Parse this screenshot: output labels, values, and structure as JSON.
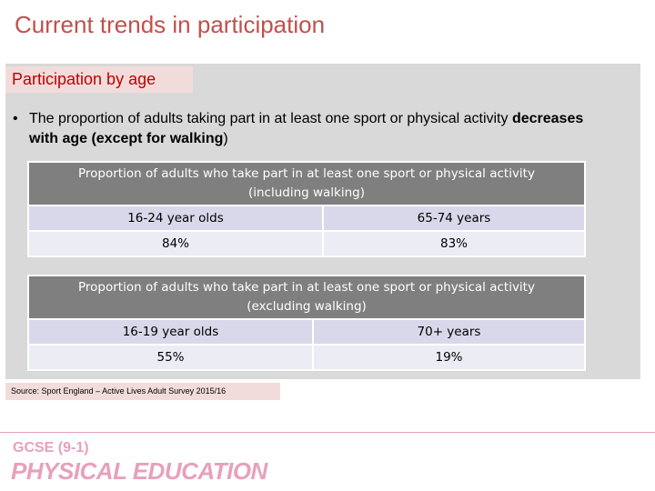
{
  "title": "Current trends in participation",
  "section_tag": "Participation by age",
  "bullet": {
    "marker": "•",
    "text_plain": "The proportion of adults taking part in at least one sport or physical activity ",
    "text_bold": "decreases with age (except for walking",
    "text_end": ")"
  },
  "table1": {
    "header": "Proportion of adults who take part in at least one sport or physical activity (including walking)",
    "col1_label": "16-24 year olds",
    "col2_label": "65-74 years",
    "col1_value": "84%",
    "col2_value": "83%"
  },
  "table2": {
    "header": "Proportion of adults who take part in at least one sport or physical activity (excluding walking)",
    "col1_label": "16-19 year olds",
    "col2_label": "70+ years",
    "col1_value": "55%",
    "col2_value": "19%"
  },
  "source": "Source: Sport England – Active Lives Adult Survey 2015/16",
  "logo": {
    "line1": "GCSE (9-1)",
    "line2": "PHYSICAL EDUCATION"
  }
}
